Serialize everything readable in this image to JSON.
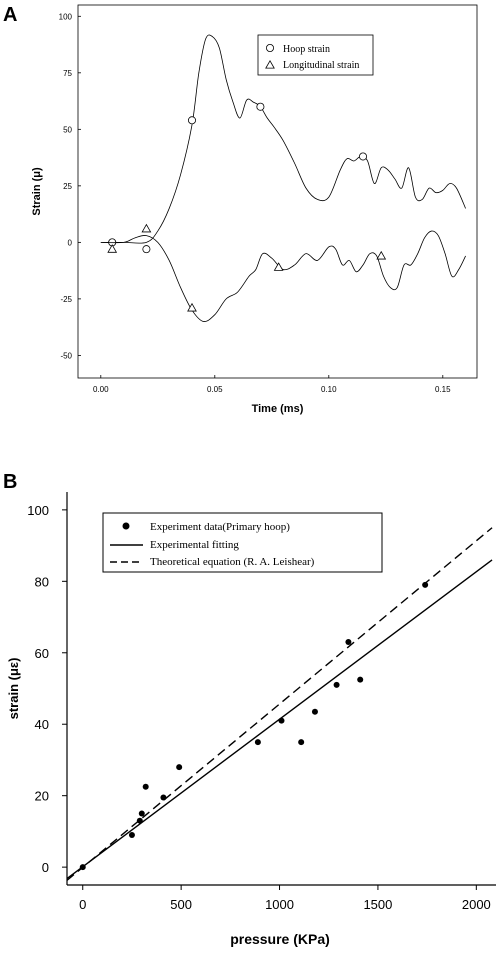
{
  "chart_data": [
    {
      "panel": "A",
      "type": "line",
      "xlabel": "Time (ms)",
      "ylabel": "Strain (μ)",
      "xlim": [
        -0.01,
        0.165
      ],
      "ylim": [
        -60,
        105
      ],
      "x_ticks": [
        "0.00",
        "0.05",
        "0.10",
        "0.15"
      ],
      "y_ticks": [
        "100",
        "75",
        "50",
        "25",
        "0",
        "-25",
        "-50"
      ],
      "legend_position": "top-right",
      "series": [
        {
          "name": "Hoop strain",
          "marker": "circle",
          "line": "solid",
          "x": [
            0.0,
            0.01,
            0.02,
            0.025,
            0.03,
            0.035,
            0.04,
            0.043,
            0.046,
            0.049,
            0.052,
            0.055,
            0.058,
            0.061,
            0.064,
            0.067,
            0.07,
            0.073,
            0.076,
            0.08,
            0.085,
            0.09,
            0.095,
            0.1,
            0.105,
            0.108,
            0.111,
            0.114,
            0.117,
            0.12,
            0.123,
            0.126,
            0.129,
            0.132,
            0.135,
            0.138,
            0.141,
            0.144,
            0.147,
            0.15,
            0.153,
            0.156,
            0.16
          ],
          "y": [
            0,
            0,
            0,
            5,
            15,
            30,
            52,
            75,
            90,
            91,
            86,
            72,
            62,
            55,
            63,
            62,
            60,
            55,
            51,
            45,
            35,
            24,
            19,
            20,
            32,
            37,
            36,
            38,
            36,
            26,
            33,
            32,
            28,
            24,
            33,
            20,
            19,
            24,
            22,
            23,
            26,
            24,
            15
          ],
          "markers_x": [
            0.005,
            0.02,
            0.04,
            0.07,
            0.115
          ],
          "markers_y": [
            0,
            -3,
            54,
            60,
            38
          ]
        },
        {
          "name": "Longitudinal strain",
          "marker": "triangle",
          "line": "solid",
          "x": [
            0.0,
            0.01,
            0.015,
            0.02,
            0.025,
            0.03,
            0.035,
            0.04,
            0.045,
            0.05,
            0.055,
            0.06,
            0.065,
            0.068,
            0.071,
            0.075,
            0.08,
            0.085,
            0.09,
            0.095,
            0.1,
            0.103,
            0.106,
            0.109,
            0.112,
            0.115,
            0.118,
            0.121,
            0.124,
            0.127,
            0.13,
            0.133,
            0.136,
            0.139,
            0.142,
            0.145,
            0.148,
            0.151,
            0.154,
            0.157,
            0.16
          ],
          "y": [
            0,
            0,
            2,
            3,
            0,
            -8,
            -20,
            -30,
            -35,
            -32,
            -25,
            -22,
            -15,
            -12,
            -5,
            -7,
            -12,
            -10,
            -5,
            -8,
            -2,
            -3,
            -10,
            -8,
            -13,
            -10,
            -5,
            -6,
            -15,
            -20,
            -20,
            -10,
            -10,
            -5,
            2,
            5,
            3,
            -5,
            -15,
            -12,
            -6
          ],
          "markers_x": [
            0.005,
            0.02,
            0.04,
            0.078,
            0.123
          ],
          "markers_y": [
            -3,
            6,
            -29,
            -11,
            -6
          ]
        }
      ]
    },
    {
      "panel": "B",
      "type": "scatter",
      "xlabel": "pressure (KPa)",
      "ylabel": "strain (με)",
      "xlim": [
        -80,
        2100
      ],
      "ylim": [
        -5,
        105
      ],
      "x_ticks": [
        "0",
        "500",
        "1000",
        "1500",
        "2000"
      ],
      "y_ticks": [
        "0",
        "20",
        "40",
        "60",
        "80",
        "100"
      ],
      "legend_position": "top-left",
      "series": [
        {
          "name": "Experiment data(Primary hoop)",
          "marker": "filled-circle",
          "x": [
            0,
            250,
            290,
            300,
            320,
            410,
            490,
            890,
            1010,
            1110,
            1180,
            1290,
            1350,
            1410,
            1740
          ],
          "y": [
            0,
            9,
            13,
            15,
            22.5,
            19.5,
            28,
            35,
            41,
            35,
            43.5,
            51,
            63,
            52.5,
            79
          ]
        },
        {
          "name": "Experimental fitting",
          "line": "solid",
          "x": [
            -80,
            2080
          ],
          "y": [
            -3.2,
            86
          ]
        },
        {
          "name": "Theoretical equation (R. A. Leishear)",
          "line": "dashed",
          "x": [
            -80,
            2080
          ],
          "y": [
            -3.7,
            95
          ]
        }
      ]
    }
  ]
}
